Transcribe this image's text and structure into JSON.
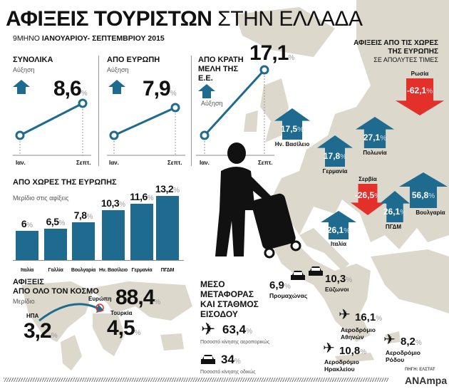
{
  "header": {
    "title_bold": "ΑΦΙΞΕΙΣ ΤΟΥΡΙΣΤΩΝ",
    "title_light": "ΣΤΗΝ ΕΛΛΑΔΑ",
    "subtitle_light": "9ΜΗΝΟ",
    "subtitle_bold": "ΙΑΝΟΥΑΡΙΟΥ- ΣΕΠΤΕΜΒΡΙΟΥ 2015"
  },
  "colors": {
    "accent": "#1e6b8f",
    "negative": "#e3302b",
    "map": "#dcd8cc"
  },
  "growth_panels": [
    {
      "title": "ΣΥΝΟΛΙΚΑ",
      "note": "Αύξηση",
      "value": "8,6",
      "unit": "%",
      "start_label": "Ιαν.",
      "end_label": "Σεπτ.",
      "icon": "arrow-up-icon"
    },
    {
      "title": "ΑΠΟ ΕΥΡΩΠΗ",
      "note": "Αύξηση",
      "value": "7,9",
      "unit": "%",
      "start_label": "Ιαν.",
      "end_label": "Σεπτ.",
      "icon": "arrow-up-icon"
    },
    {
      "title": "ΑΠΟ ΚΡΑΤΗ ΜΕΛΗ ΤΗΣ Ε.Ε.",
      "note": "Αύξηση",
      "value": "17,1",
      "unit": "%",
      "start_label": "Ιαν.",
      "end_label": "Σεπτ.",
      "icon": "arrow-up-icon"
    }
  ],
  "europe_map": {
    "title_line1": "ΑΦΙΞΕΙΣ ΑΠΟ ΤΙΣ ΧΩΡΕΣ",
    "title_line2": "ΤΗΣ ΕΥΡΩΠΗΣ",
    "title_line3": "ΣΕ ΑΠΟΛΥΤΕΣ ΤΙΜΕΣ",
    "countries": [
      {
        "name": "Ην. Βασίλειο",
        "value": "17,5",
        "unit": "%",
        "direction": "up"
      },
      {
        "name": "Γερμανία",
        "value": "17,8",
        "unit": "%",
        "direction": "up"
      },
      {
        "name": "Πολωνία",
        "value": "27,1",
        "unit": "%",
        "direction": "up"
      },
      {
        "name": "Ρωσία",
        "value": "-62,1",
        "unit": "%",
        "direction": "down"
      },
      {
        "name": "Σερβία",
        "value": "-26,5",
        "unit": "%",
        "direction": "down"
      },
      {
        "name": "ΠΓΔΜ",
        "value": "26,1",
        "unit": "%",
        "direction": "up"
      },
      {
        "name": "Βουλγαρία",
        "value": "56,8",
        "unit": "%",
        "direction": "up"
      },
      {
        "name": "Ιταλία",
        "value": "26,1",
        "unit": "%",
        "direction": "up"
      }
    ]
  },
  "chart_data": {
    "type": "bar",
    "title": "ΑΠΟ ΧΩΡΕΣ ΤΗΣ ΕΥΡΩΠΗΣ",
    "subtitle": "Μερίδιο στις αφίξεις",
    "categories": [
      "Ιταλία",
      "Γαλλία",
      "Βουλγαρία",
      "Ην. Βασίλειο",
      "Γερμανία",
      "ΠΓΔΜ"
    ],
    "values": [
      6,
      6.5,
      7.8,
      10.3,
      11.6,
      13.2
    ],
    "labels": [
      "6",
      "6,5",
      "7,8",
      "10,3",
      "11,6",
      "13,2"
    ],
    "unit": "%"
  },
  "world": {
    "title_line1": "ΑΦΙΞΕΙΣ",
    "title_line2": "ΑΠΟ ΟΛΟ ΤΟΝ ΚΟΣΜΟ",
    "note": "Μερίδιο",
    "europe": {
      "name": "Ευρώπη",
      "value": "88,4",
      "unit": "%"
    },
    "turkey": {
      "name": "Τουρκία",
      "value": "4,5",
      "unit": "%"
    },
    "usa": {
      "name": "ΗΠΑ",
      "value": "3,2",
      "unit": "%"
    }
  },
  "transport": {
    "title_lines": [
      "ΜΕΣΟ",
      "ΜΕΤΑΦΟΡΑΣ",
      "ΚΑΙ ΣΤΑΘΜΟΣ",
      "ΕΙΣΟΔΟΥ"
    ],
    "air": {
      "value": "63,4",
      "unit": "%",
      "note": "Ποσοστό κίνησης αεροπορικώς"
    },
    "road": {
      "value": "34",
      "unit": "%",
      "note": "Ποσοστό κίνησης οδικώς"
    },
    "stations": [
      {
        "name": "Προμαχώνας",
        "value": "6,9",
        "unit": "%",
        "icon": "car-icon"
      },
      {
        "name": "Εύζωνοι",
        "value": "10,3",
        "unit": "%",
        "icon": "car-icon"
      },
      {
        "name": "Αεροδρόμιο Αθηνών",
        "value": "16,1",
        "unit": "%",
        "icon": "plane-icon"
      },
      {
        "name": "Αεροδρόμιο Ηρακλείου",
        "value": "10,8",
        "unit": "%",
        "icon": "plane-icon"
      },
      {
        "name": "Αεροδρόμιο Ρόδου",
        "value": "8,2",
        "unit": "%",
        "icon": "plane-icon"
      }
    ]
  },
  "footer": {
    "source": "ΠΗΓΗ: ΕΛΣΤΑΤ",
    "logo": "ANAmpa"
  }
}
